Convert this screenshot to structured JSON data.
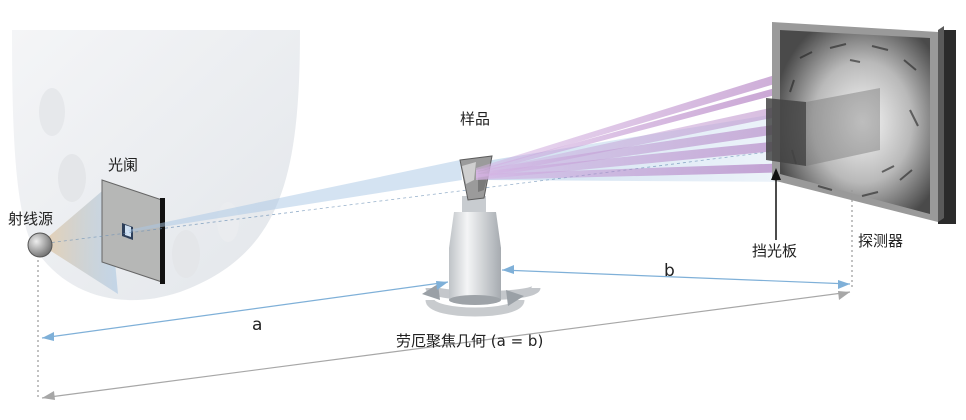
{
  "labels": {
    "source": "射线源",
    "slit": "光阑",
    "sample": "样品",
    "beamstop": "挡光板",
    "detector": "探测器",
    "dist_a": "a",
    "dist_b": "b",
    "geometry": "劳厄聚焦几何 (a = b)"
  },
  "colors": {
    "beam": "#a9c8e6",
    "diffraction": "#8a3fa0",
    "dimension": "#7fb0d8"
  }
}
